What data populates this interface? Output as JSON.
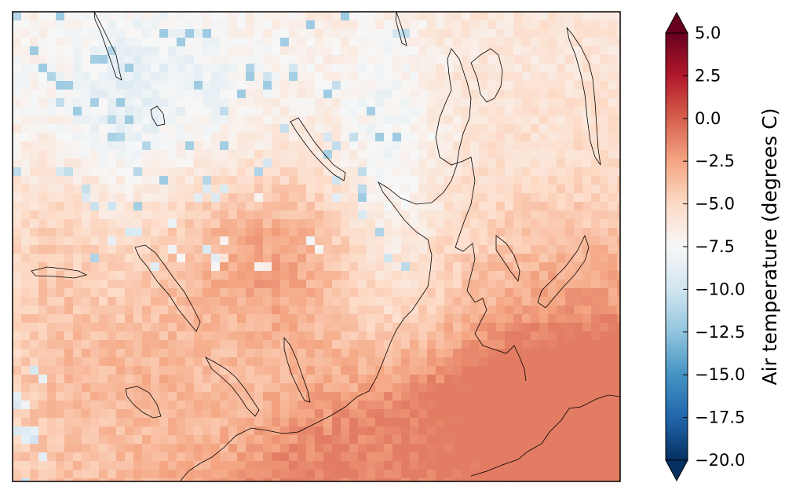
{
  "chart_data": {
    "type": "heatmap",
    "title": "",
    "variable": "Air temperature",
    "units": "degrees C",
    "colormap": "RdBu_r",
    "colorbar": {
      "label": "Air temperature (degrees C)",
      "vmin": -20.0,
      "vmax": 5.0,
      "extend": "both",
      "ticks": [
        5.0,
        2.5,
        0.0,
        -2.5,
        -5.0,
        -7.5,
        -10.0,
        -12.5,
        -15.0,
        -17.5,
        -20.0
      ],
      "tick_labels": [
        "5.0",
        "2.5",
        "0.0",
        "−2.5",
        "−5.0",
        "−7.5",
        "−10.0",
        "−12.5",
        "−15.0",
        "−17.5",
        "−20.0"
      ]
    },
    "field_summary": {
      "approx_range": [
        -12.0,
        -1.0
      ],
      "coldest_areas": "scattered cells in upper-left highlands (about -9 to -12)",
      "warmest_areas": "sea area in lower-right and central inland basin (about -2 to -3)"
    },
    "coastlines": true,
    "gridlines": false
  },
  "colors": {
    "cmap_stops": [
      "#053061",
      "#2166ac",
      "#4393c3",
      "#92c5de",
      "#d1e5f0",
      "#f7f7f7",
      "#fddbc7",
      "#f4a582",
      "#d6604d",
      "#b2182b",
      "#67001f"
    ]
  }
}
